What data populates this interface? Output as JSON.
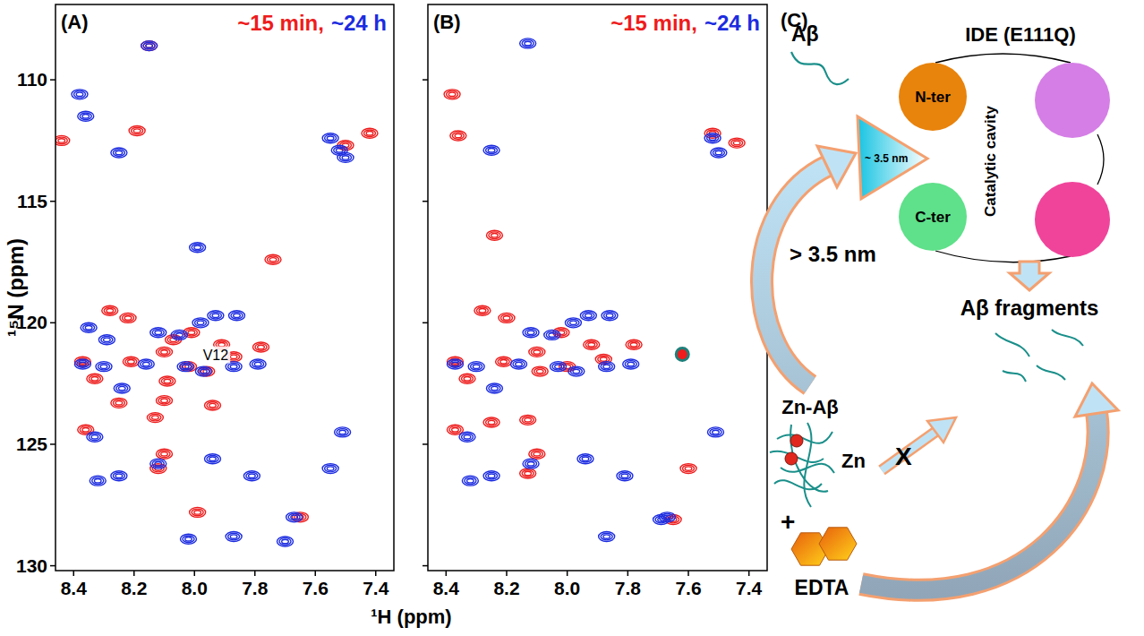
{
  "chart_data": [
    {
      "type": "scatter",
      "panel": "(A)",
      "xlabel": "¹H  (ppm)",
      "ylabel": "¹⁵N  (ppm)",
      "xlim": [
        8.46,
        7.34
      ],
      "ylim": [
        106.9,
        130.2
      ],
      "xticks": [
        8.4,
        8.2,
        {
          "value": 8,
          "label": "8.0"
        },
        7.8,
        7.6,
        7.4
      ],
      "yticks": [
        110,
        115,
        120,
        125,
        130
      ],
      "legend": "top-right",
      "series": [
        {
          "name": "~15 min,",
          "color": "#ee1c1c",
          "marker": "contour",
          "x": [
            8.15,
            8.19,
            8.44,
            7.42,
            7.5,
            7.74,
            8.28,
            8.22,
            8.01,
            7.91,
            7.78,
            8.1,
            8.37,
            8.33,
            8.21,
            8.09,
            8.02,
            7.96,
            7.87,
            8.25,
            8.13,
            8.1,
            7.94,
            8.36,
            8.1,
            8.12,
            7.99,
            7.65,
            8.07
          ],
          "values": [
            108.6,
            112.1,
            112.5,
            112.2,
            112.7,
            117.4,
            119.5,
            119.8,
            120.4,
            120.9,
            121.0,
            121.2,
            121.6,
            122.3,
            121.6,
            122.4,
            121.8,
            122.0,
            121.4,
            123.3,
            123.9,
            123.2,
            123.4,
            124.4,
            125.4,
            126.0,
            127.8,
            128.0,
            120.7
          ]
        },
        {
          "name": "~24 h",
          "color": "#1c2ce0",
          "marker": "contour",
          "x": [
            8.15,
            8.38,
            8.36,
            8.25,
            7.55,
            7.52,
            7.5,
            7.99,
            8.35,
            8.29,
            8.05,
            7.98,
            7.93,
            7.86,
            8.12,
            8.37,
            8.3,
            8.16,
            8.03,
            7.97,
            7.87,
            7.79,
            8.24,
            8.33,
            8.25,
            8.32,
            8.12,
            7.94,
            7.81,
            7.51,
            7.55,
            7.67,
            7.87,
            7.7,
            8.02
          ],
          "values": [
            108.6,
            110.6,
            111.5,
            113.0,
            112.4,
            112.9,
            113.2,
            116.9,
            120.2,
            120.7,
            120.5,
            120.0,
            119.7,
            119.7,
            120.4,
            121.7,
            121.8,
            121.7,
            121.8,
            122.0,
            121.8,
            121.7,
            122.7,
            124.7,
            126.3,
            126.5,
            125.8,
            125.6,
            126.3,
            124.5,
            126.0,
            128.0,
            128.8,
            129.0,
            128.9
          ]
        }
      ],
      "annotations": [
        {
          "text": "V12",
          "x": 7.93,
          "y": 121.3
        }
      ]
    },
    {
      "type": "scatter",
      "panel": "(B)",
      "xlim": [
        8.46,
        7.34
      ],
      "ylim": [
        106.9,
        130.2
      ],
      "xticks": [
        8.4,
        8.2,
        {
          "value": 8,
          "label": "8.0"
        },
        7.8,
        7.6,
        7.4
      ],
      "yticks": [
        110,
        115,
        120,
        125,
        130
      ],
      "tick_labels": "x",
      "legend": "top-right",
      "series": [
        {
          "name": "~15 min,",
          "color": "#ee1c1c",
          "marker": "contour",
          "x": [
            8.38,
            8.36,
            8.24,
            7.52,
            7.44,
            8.28,
            8.2,
            8.02,
            7.92,
            7.78,
            8.1,
            8.37,
            8.33,
            8.21,
            8.09,
            8.0,
            7.88,
            8.25,
            8.13,
            8.37,
            8.1,
            8.13,
            7.6,
            7.65
          ],
          "values": [
            110.6,
            112.3,
            116.4,
            112.2,
            112.6,
            119.5,
            119.8,
            120.4,
            120.9,
            120.9,
            121.2,
            121.6,
            122.3,
            121.6,
            122.0,
            121.8,
            121.5,
            124.1,
            124.0,
            124.4,
            125.4,
            126.2,
            126.0,
            128.1
          ]
        },
        {
          "name": "~24 h",
          "color": "#1c2ce0",
          "marker": "contour",
          "x": [
            8.13,
            7.52,
            7.5,
            8.25,
            8.05,
            7.98,
            7.93,
            7.86,
            8.12,
            8.37,
            8.3,
            8.16,
            8.03,
            7.97,
            7.87,
            7.79,
            8.24,
            8.33,
            8.25,
            8.32,
            8.12,
            7.94,
            7.81,
            7.51,
            7.67,
            7.87,
            7.69
          ],
          "values": [
            108.5,
            112.4,
            113.0,
            112.9,
            120.5,
            120.0,
            119.7,
            119.7,
            120.4,
            121.7,
            121.8,
            121.7,
            121.8,
            122.0,
            121.8,
            121.7,
            122.7,
            124.7,
            126.3,
            126.5,
            125.8,
            125.6,
            126.3,
            124.5,
            128.0,
            128.8,
            128.1
          ]
        }
      ],
      "highlight": {
        "x": 7.62,
        "y": 121.3,
        "marker": "circle",
        "color": "#1f7f7a"
      }
    }
  ],
  "diagram": {
    "panel": "(C)",
    "substrate": "Aβ",
    "enzyme": "IDE (E111Q)",
    "domains": [
      "N-ter",
      "C-ter"
    ],
    "cavity": "Catalytic cavity",
    "cavity_size": "~ 3.5 nm",
    "size_limit": "> 3.5 nm",
    "products": "Aβ fragments",
    "complex": "Zn-Aβ",
    "metal": "Zn",
    "blocked": "X",
    "plus": "+",
    "chelator": "EDTA"
  }
}
